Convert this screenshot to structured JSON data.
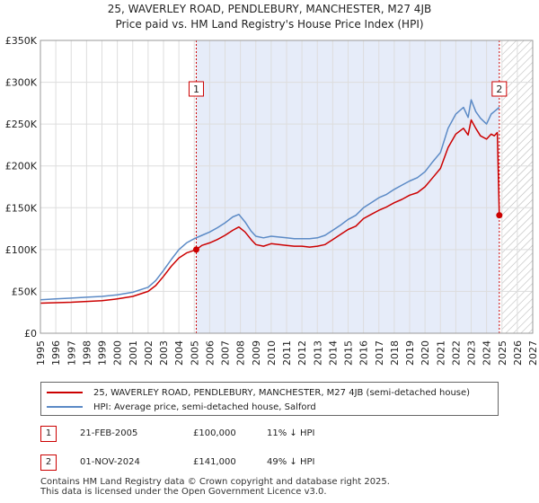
{
  "chart_data": {
    "type": "line",
    "title": "25, WAVERLEY ROAD, PENDLEBURY, MANCHESTER, M27 4JB",
    "subtitle": "Price paid vs. HM Land Registry's House Price Index (HPI)",
    "xlabel": "",
    "ylabel": "",
    "xlim": [
      1995,
      2027
    ],
    "ylim": [
      0,
      350000
    ],
    "x_ticks": [
      "1995",
      "1996",
      "1997",
      "1998",
      "1999",
      "2000",
      "2001",
      "2002",
      "2003",
      "2004",
      "2005",
      "2006",
      "2007",
      "2008",
      "2009",
      "2010",
      "2011",
      "2012",
      "2013",
      "2014",
      "2015",
      "2016",
      "2017",
      "2018",
      "2019",
      "2020",
      "2021",
      "2022",
      "2023",
      "2024",
      "2025",
      "2026",
      "2027"
    ],
    "y_ticks": [
      {
        "value": 0,
        "label": "£0"
      },
      {
        "value": 50000,
        "label": "£50K"
      },
      {
        "value": 100000,
        "label": "£100K"
      },
      {
        "value": 150000,
        "label": "£150K"
      },
      {
        "value": 200000,
        "label": "£200K"
      },
      {
        "value": 250000,
        "label": "£250K"
      },
      {
        "value": 300000,
        "label": "£300K"
      },
      {
        "value": 350000,
        "label": "£350K"
      }
    ],
    "grid": true,
    "shaded_period": {
      "from": 2005.13,
      "to": 2024.83
    },
    "future_hatch_from": 2025.0,
    "series": [
      {
        "name": "25, WAVERLEY ROAD, PENDLEBURY, MANCHESTER, M27 4JB (semi-detached house)",
        "color": "#cc0000",
        "x": [
          1995.0,
          1996.0,
          1997.0,
          1998.0,
          1999.0,
          2000.0,
          2001.0,
          2002.0,
          2002.5,
          2003.0,
          2003.5,
          2004.0,
          2004.5,
          2005.13,
          2005.5,
          2006.0,
          2006.5,
          2007.0,
          2007.5,
          2007.9,
          2008.3,
          2008.7,
          2009.0,
          2009.5,
          2010.0,
          2010.5,
          2011.0,
          2011.5,
          2012.0,
          2012.5,
          2013.0,
          2013.5,
          2014.0,
          2014.5,
          2015.0,
          2015.5,
          2016.0,
          2016.5,
          2017.0,
          2017.5,
          2018.0,
          2018.5,
          2019.0,
          2019.5,
          2020.0,
          2020.5,
          2021.0,
          2021.5,
          2022.0,
          2022.5,
          2022.8,
          2023.0,
          2023.3,
          2023.6,
          2024.0,
          2024.3,
          2024.5,
          2024.7,
          2024.83
        ],
        "y": [
          36000,
          36500,
          37000,
          38000,
          39000,
          41000,
          44000,
          50000,
          57000,
          68000,
          80000,
          90000,
          96000,
          100000,
          105000,
          108000,
          112000,
          117000,
          123000,
          127000,
          121000,
          112000,
          106000,
          104000,
          107000,
          106000,
          105000,
          104000,
          104000,
          103000,
          104000,
          106000,
          112000,
          118000,
          124000,
          128000,
          137000,
          142000,
          147000,
          151000,
          156000,
          160000,
          165000,
          168000,
          175000,
          186000,
          197000,
          222000,
          238000,
          245000,
          237000,
          255000,
          245000,
          236000,
          232000,
          238000,
          236000,
          240000,
          141000
        ]
      },
      {
        "name": "HPI: Average price, semi-detached house, Salford",
        "color": "#5b8ac6",
        "x": [
          1995.0,
          1996.0,
          1997.0,
          1998.0,
          1999.0,
          2000.0,
          2001.0,
          2002.0,
          2002.5,
          2003.0,
          2003.5,
          2004.0,
          2004.5,
          2005.0,
          2005.5,
          2006.0,
          2006.5,
          2007.0,
          2007.5,
          2007.9,
          2008.3,
          2008.7,
          2009.0,
          2009.5,
          2010.0,
          2010.5,
          2011.0,
          2011.5,
          2012.0,
          2012.5,
          2013.0,
          2013.5,
          2014.0,
          2014.5,
          2015.0,
          2015.5,
          2016.0,
          2016.5,
          2017.0,
          2017.5,
          2018.0,
          2018.5,
          2019.0,
          2019.5,
          2020.0,
          2020.5,
          2021.0,
          2021.5,
          2022.0,
          2022.5,
          2022.8,
          2023.0,
          2023.3,
          2023.6,
          2024.0,
          2024.3,
          2024.5,
          2024.83
        ],
        "y": [
          40000,
          41000,
          42000,
          43000,
          44000,
          46000,
          49000,
          55000,
          63000,
          75000,
          88000,
          100000,
          108000,
          113000,
          117000,
          121000,
          126000,
          132000,
          139000,
          142000,
          133000,
          122000,
          116000,
          114000,
          116000,
          115000,
          114000,
          113000,
          113000,
          113000,
          114000,
          117000,
          123000,
          129000,
          136000,
          141000,
          150000,
          156000,
          162000,
          166000,
          172000,
          177000,
          182000,
          186000,
          193000,
          205000,
          216000,
          245000,
          262000,
          270000,
          258000,
          279000,
          265000,
          257000,
          250000,
          262000,
          265000,
          270000
        ]
      }
    ],
    "markers": [
      {
        "id": "1",
        "x": 2005.13,
        "y": 100000
      },
      {
        "id": "2",
        "x": 2024.83,
        "y": 141000
      }
    ]
  },
  "legend": [
    {
      "label": "25, WAVERLEY ROAD, PENDLEBURY, MANCHESTER, M27 4JB (semi-detached house)",
      "color": "#cc0000"
    },
    {
      "label": "HPI: Average price, semi-detached house, Salford",
      "color": "#5b8ac6"
    }
  ],
  "sales": [
    {
      "num": "1",
      "date": "21-FEB-2005",
      "price": "£100,000",
      "hpi": "11% ↓ HPI"
    },
    {
      "num": "2",
      "date": "01-NOV-2024",
      "price": "£141,000",
      "hpi": "49% ↓ HPI"
    }
  ],
  "footer": {
    "line1": "Contains HM Land Registry data © Crown copyright and database right 2025.",
    "line2": "This data is licensed under the Open Government Licence v3.0."
  }
}
